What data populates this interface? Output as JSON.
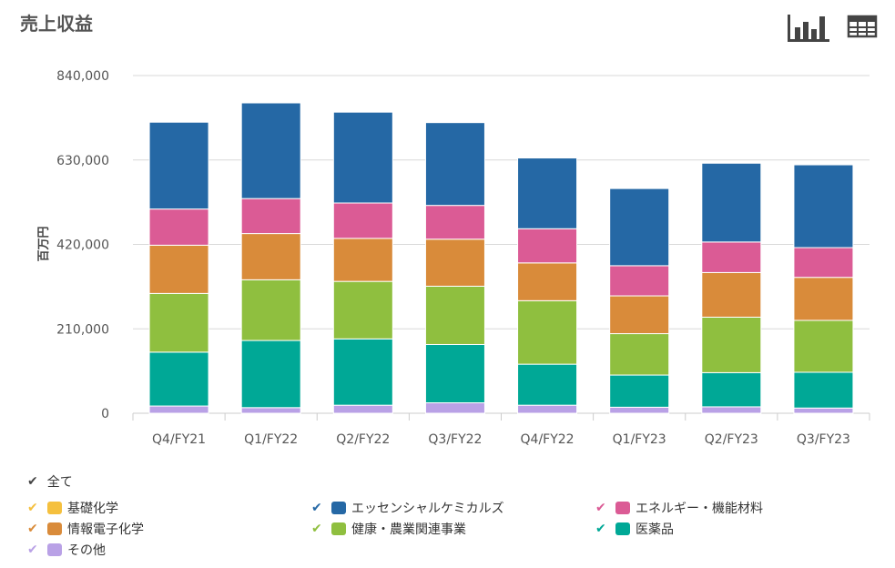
{
  "title": "売上収益",
  "icons": {
    "chart_view": "bar-chart-icon",
    "table_view": "table-icon"
  },
  "legend": {
    "all_label": "全て",
    "items": [
      {
        "label": "基礎化学",
        "color": "#F5C03E"
      },
      {
        "label": "エッセンシャルケミカルズ",
        "color": "#2568A5"
      },
      {
        "label": "エネルギー・機能材料",
        "color": "#DB5B95"
      },
      {
        "label": "情報電子化学",
        "color": "#D98B3A"
      },
      {
        "label": "健康・農業関連事業",
        "color": "#8FBF3F"
      },
      {
        "label": "医薬品",
        "color": "#00A896"
      },
      {
        "label": "その他",
        "color": "#B9A1E6"
      }
    ]
  },
  "chart_data": {
    "type": "bar",
    "stacked": true,
    "ylabel": "百万円",
    "ylim": [
      0,
      840000
    ],
    "yticks": [
      "0",
      "210,000",
      "420,000",
      "630,000",
      "840,000"
    ],
    "ytick_values": [
      0,
      210000,
      420000,
      630000,
      840000
    ],
    "grid": true,
    "categories": [
      "Q4/FY21",
      "Q1/FY22",
      "Q2/FY22",
      "Q3/FY22",
      "Q4/FY22",
      "Q1/FY23",
      "Q2/FY23",
      "Q3/FY23"
    ],
    "series": [
      {
        "name": "その他",
        "color": "#B9A1E6",
        "values": [
          18000,
          14000,
          20000,
          26000,
          20000,
          15000,
          16000,
          13000
        ]
      },
      {
        "name": "医薬品",
        "color": "#00A896",
        "values": [
          134000,
          167000,
          165000,
          145000,
          102000,
          80000,
          85000,
          89000
        ]
      },
      {
        "name": "健康・農業関連事業",
        "color": "#8FBF3F",
        "values": [
          146000,
          151000,
          143000,
          145000,
          158000,
          103000,
          138000,
          129000
        ]
      },
      {
        "name": "情報電子化学",
        "color": "#D98B3A",
        "values": [
          120000,
          115000,
          107000,
          117000,
          94000,
          94000,
          111000,
          107000
        ]
      },
      {
        "name": "エネルギー・機能材料",
        "color": "#DB5B95",
        "values": [
          90000,
          87000,
          88000,
          84000,
          85000,
          75000,
          76000,
          74000
        ]
      },
      {
        "name": "エッセンシャルケミカルズ",
        "color": "#2568A5",
        "values": [
          216000,
          238000,
          226000,
          206000,
          176000,
          192000,
          196000,
          206000
        ]
      },
      {
        "name": "基礎化学",
        "color": "#F5C03E",
        "values": [
          0,
          0,
          0,
          0,
          0,
          0,
          0,
          0
        ]
      }
    ]
  }
}
